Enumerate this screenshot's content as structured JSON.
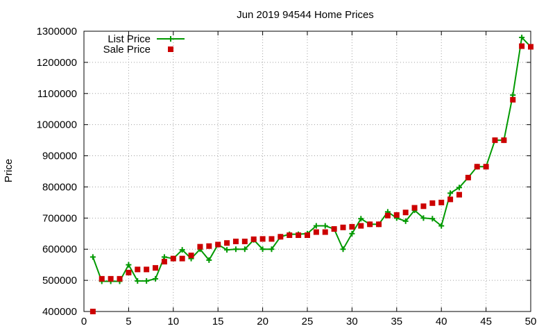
{
  "chart_data": {
    "type": "line",
    "title": "Jun 2019 94544 Home Prices",
    "xlabel": "",
    "ylabel": "Price",
    "xlim": [
      0,
      50
    ],
    "ylim": [
      400000,
      1300000
    ],
    "x_ticks": [
      "0",
      "5",
      "10",
      "15",
      "20",
      "25",
      "30",
      "35",
      "40",
      "45",
      "50"
    ],
    "y_ticks": [
      "400000",
      "500000",
      "600000",
      "700000",
      "800000",
      "900000",
      "1000000",
      "1100000",
      "1200000",
      "1300000"
    ],
    "grid": true,
    "legend_position": "top-left",
    "series": [
      {
        "name": "List Price",
        "style": "line-plus",
        "color": "#009900",
        "points": [
          [
            1,
            575000
          ],
          [
            2,
            497000
          ],
          [
            3,
            497000
          ],
          [
            4,
            497000
          ],
          [
            5,
            550000
          ],
          [
            6,
            498000
          ],
          [
            7,
            498000
          ],
          [
            8,
            505000
          ],
          [
            9,
            575000
          ],
          [
            10,
            570000
          ],
          [
            11,
            598000
          ],
          [
            12,
            570000
          ],
          [
            13,
            600000
          ],
          [
            14,
            565000
          ],
          [
            15,
            615000
          ],
          [
            16,
            598000
          ],
          [
            17,
            600000
          ],
          [
            18,
            600000
          ],
          [
            19,
            630000
          ],
          [
            20,
            600000
          ],
          [
            21,
            600000
          ],
          [
            22,
            640000
          ],
          [
            23,
            648000
          ],
          [
            24,
            648000
          ],
          [
            25,
            650000
          ],
          [
            26,
            675000
          ],
          [
            27,
            675000
          ],
          [
            28,
            665000
          ],
          [
            29,
            600000
          ],
          [
            30,
            650000
          ],
          [
            31,
            698000
          ],
          [
            32,
            680000
          ],
          [
            33,
            680000
          ],
          [
            34,
            720000
          ],
          [
            35,
            700000
          ],
          [
            36,
            690000
          ],
          [
            37,
            725000
          ],
          [
            38,
            700000
          ],
          [
            39,
            698000
          ],
          [
            40,
            675000
          ],
          [
            41,
            780000
          ],
          [
            42,
            798000
          ],
          [
            43,
            830000
          ],
          [
            44,
            865000
          ],
          [
            45,
            865000
          ],
          [
            46,
            950000
          ],
          [
            47,
            950000
          ],
          [
            48,
            1095000
          ],
          [
            49,
            1280000
          ],
          [
            50,
            1250000
          ]
        ]
      },
      {
        "name": "Sale Price",
        "style": "square",
        "color": "#cc0000",
        "points": [
          [
            1,
            400000
          ],
          [
            2,
            505000
          ],
          [
            3,
            505000
          ],
          [
            4,
            505000
          ],
          [
            5,
            525000
          ],
          [
            6,
            535000
          ],
          [
            7,
            535000
          ],
          [
            8,
            540000
          ],
          [
            9,
            560000
          ],
          [
            10,
            570000
          ],
          [
            11,
            570000
          ],
          [
            12,
            580000
          ],
          [
            13,
            608000
          ],
          [
            14,
            610000
          ],
          [
            15,
            615000
          ],
          [
            16,
            620000
          ],
          [
            17,
            625000
          ],
          [
            18,
            625000
          ],
          [
            19,
            632000
          ],
          [
            20,
            633000
          ],
          [
            21,
            633000
          ],
          [
            22,
            640000
          ],
          [
            23,
            645000
          ],
          [
            24,
            645000
          ],
          [
            25,
            645000
          ],
          [
            26,
            655000
          ],
          [
            27,
            655000
          ],
          [
            28,
            665000
          ],
          [
            29,
            670000
          ],
          [
            30,
            672000
          ],
          [
            31,
            675000
          ],
          [
            32,
            680000
          ],
          [
            33,
            680000
          ],
          [
            34,
            708000
          ],
          [
            35,
            710000
          ],
          [
            36,
            718000
          ],
          [
            37,
            733000
          ],
          [
            38,
            738000
          ],
          [
            39,
            748000
          ],
          [
            40,
            750000
          ],
          [
            41,
            760000
          ],
          [
            42,
            775000
          ],
          [
            43,
            830000
          ],
          [
            44,
            865000
          ],
          [
            45,
            865000
          ],
          [
            46,
            950000
          ],
          [
            47,
            950000
          ],
          [
            48,
            1080000
          ],
          [
            49,
            1252000
          ],
          [
            50,
            1250000
          ]
        ]
      }
    ]
  }
}
